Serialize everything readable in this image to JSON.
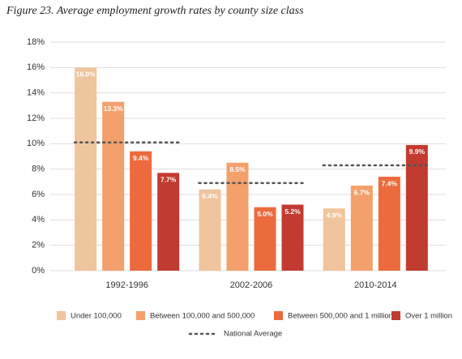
{
  "chart_data": {
    "type": "bar",
    "title": "Figure 23. Average employment growth rates by county size class",
    "categories": [
      "1992-1996",
      "2002-2006",
      "2010-2014"
    ],
    "series": [
      {
        "name": "Under 100,000",
        "color": "#f0c49c",
        "values": [
          16.0,
          6.4,
          4.9
        ],
        "value_labels": [
          "16.0%",
          "6.4%",
          "4.9%"
        ]
      },
      {
        "name": "Between 100,000 and 500,000",
        "color": "#f4a06c",
        "values": [
          13.3,
          8.5,
          6.7
        ],
        "value_labels": [
          "13.3%",
          "8.5%",
          "6.7%"
        ]
      },
      {
        "name": "Between 500,000 and 1 million",
        "color": "#ec6a3c",
        "values": [
          9.4,
          5.0,
          7.4
        ],
        "value_labels": [
          "9.4%",
          "5.0%",
          "7.4%"
        ]
      },
      {
        "name": "Over 1 million",
        "color": "#c23b30",
        "values": [
          7.7,
          5.2,
          9.9
        ],
        "value_labels": [
          "7.7%",
          "5.2%",
          "9.9%"
        ]
      }
    ],
    "national_average": {
      "name": "National Average",
      "color": "#555555",
      "values": [
        10.1,
        6.9,
        8.3
      ]
    },
    "ylim": [
      0,
      18
    ],
    "yticks": [
      {
        "value": 0,
        "label": "0%"
      },
      {
        "value": 2,
        "label": "2%"
      },
      {
        "value": 4,
        "label": "4%"
      },
      {
        "value": 6,
        "label": "6%"
      },
      {
        "value": 8,
        "label": "8%"
      },
      {
        "value": 10,
        "label": "10%"
      },
      {
        "value": 12,
        "label": "12%"
      },
      {
        "value": 14,
        "label": "14%"
      },
      {
        "value": 16,
        "label": "16%"
      },
      {
        "value": 18,
        "label": "18%"
      }
    ],
    "grid": true
  }
}
